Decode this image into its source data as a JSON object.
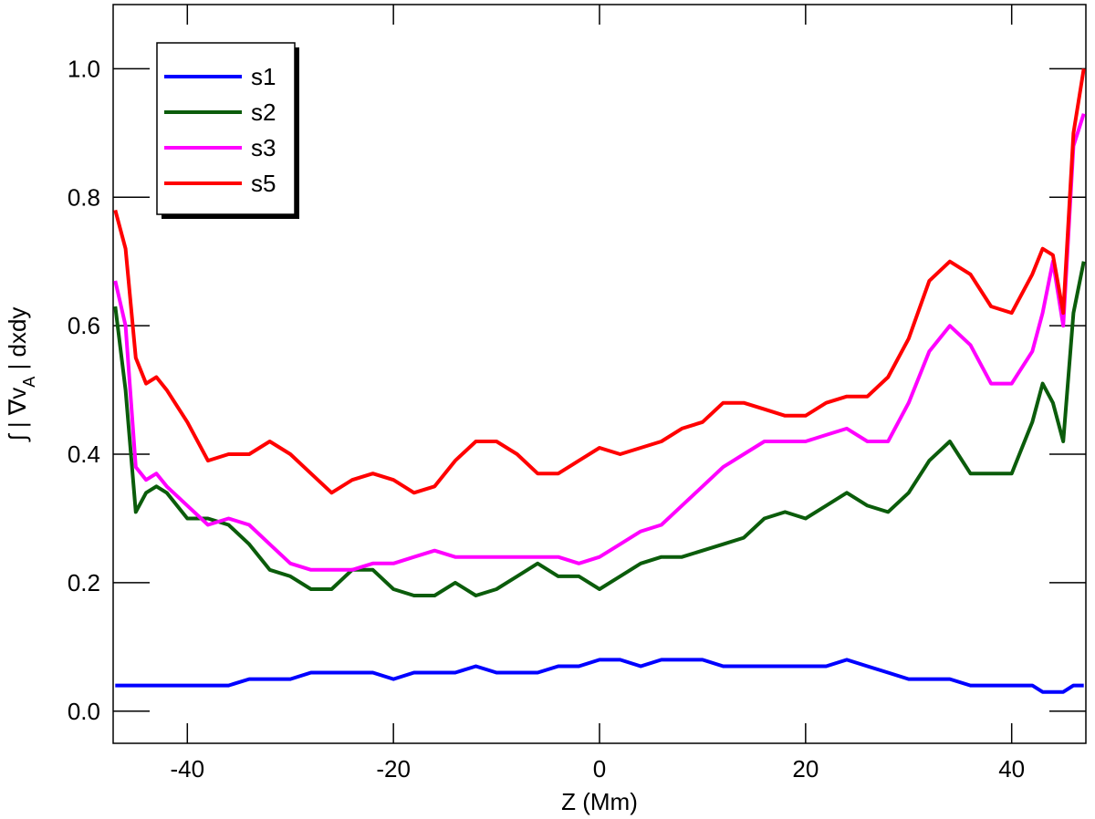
{
  "chart_data": {
    "type": "line",
    "xlabel": "Z (Mm)",
    "ylabel": [
      "∫ | ∇v",
      "A",
      " |  dxdy"
    ],
    "xlim": [
      -47.2,
      47.2
    ],
    "ylim": [
      -0.05,
      1.1
    ],
    "xticks": [
      -40,
      -20,
      0,
      20,
      40
    ],
    "yticks": [
      {
        "value": 0,
        "label": "0.0"
      },
      {
        "value": 0.2,
        "label": "0.2"
      },
      {
        "value": 0.4,
        "label": "0.4"
      },
      {
        "value": 0.6,
        "label": "0.6"
      },
      {
        "value": 0.8,
        "label": "0.8"
      },
      {
        "value": 1,
        "label": "1.0"
      }
    ],
    "legend": "upper left",
    "x": [
      -47,
      -46,
      -45,
      -44,
      -43,
      -42,
      -40,
      -38,
      -36,
      -34,
      -32,
      -30,
      -28,
      -26,
      -24,
      -22,
      -20,
      -18,
      -16,
      -14,
      -12,
      -10,
      -8,
      -6,
      -4,
      -2,
      0,
      2,
      4,
      6,
      8,
      10,
      12,
      14,
      16,
      18,
      20,
      22,
      24,
      26,
      28,
      30,
      32,
      34,
      36,
      38,
      40,
      42,
      43,
      44,
      45,
      46,
      47
    ],
    "series": [
      {
        "name": "s1",
        "color": "#0000ff",
        "values": [
          0.04,
          0.04,
          0.04,
          0.04,
          0.04,
          0.04,
          0.04,
          0.04,
          0.04,
          0.05,
          0.05,
          0.05,
          0.06,
          0.06,
          0.06,
          0.06,
          0.05,
          0.06,
          0.06,
          0.06,
          0.07,
          0.06,
          0.06,
          0.06,
          0.07,
          0.07,
          0.08,
          0.08,
          0.07,
          0.08,
          0.08,
          0.08,
          0.07,
          0.07,
          0.07,
          0.07,
          0.07,
          0.07,
          0.08,
          0.07,
          0.06,
          0.05,
          0.05,
          0.05,
          0.04,
          0.04,
          0.04,
          0.04,
          0.03,
          0.03,
          0.03,
          0.04,
          0.04
        ]
      },
      {
        "name": "s2",
        "color": "#0b5c0b",
        "values": [
          0.63,
          0.5,
          0.31,
          0.34,
          0.35,
          0.34,
          0.3,
          0.3,
          0.29,
          0.26,
          0.22,
          0.21,
          0.19,
          0.19,
          0.22,
          0.22,
          0.19,
          0.18,
          0.18,
          0.2,
          0.18,
          0.19,
          0.21,
          0.23,
          0.21,
          0.21,
          0.19,
          0.21,
          0.23,
          0.24,
          0.24,
          0.25,
          0.26,
          0.27,
          0.3,
          0.31,
          0.3,
          0.32,
          0.34,
          0.32,
          0.31,
          0.34,
          0.39,
          0.42,
          0.37,
          0.37,
          0.37,
          0.45,
          0.51,
          0.48,
          0.42,
          0.62,
          0.7
        ]
      },
      {
        "name": "s3",
        "color": "#ff00ff",
        "values": [
          0.67,
          0.6,
          0.38,
          0.36,
          0.37,
          0.35,
          0.32,
          0.29,
          0.3,
          0.29,
          0.26,
          0.23,
          0.22,
          0.22,
          0.22,
          0.23,
          0.23,
          0.24,
          0.25,
          0.24,
          0.24,
          0.24,
          0.24,
          0.24,
          0.24,
          0.23,
          0.24,
          0.26,
          0.28,
          0.29,
          0.32,
          0.35,
          0.38,
          0.4,
          0.42,
          0.42,
          0.42,
          0.43,
          0.44,
          0.42,
          0.42,
          0.48,
          0.56,
          0.6,
          0.57,
          0.51,
          0.51,
          0.56,
          0.62,
          0.7,
          0.6,
          0.88,
          0.93
        ]
      },
      {
        "name": "s5",
        "color": "#ff0000",
        "values": [
          0.78,
          0.72,
          0.55,
          0.51,
          0.52,
          0.5,
          0.45,
          0.39,
          0.4,
          0.4,
          0.42,
          0.4,
          0.37,
          0.34,
          0.36,
          0.37,
          0.36,
          0.34,
          0.35,
          0.39,
          0.42,
          0.42,
          0.4,
          0.37,
          0.37,
          0.39,
          0.41,
          0.4,
          0.41,
          0.42,
          0.44,
          0.45,
          0.48,
          0.48,
          0.47,
          0.46,
          0.46,
          0.48,
          0.49,
          0.49,
          0.52,
          0.58,
          0.67,
          0.7,
          0.68,
          0.63,
          0.62,
          0.68,
          0.72,
          0.71,
          0.62,
          0.9,
          1.0
        ]
      }
    ]
  }
}
